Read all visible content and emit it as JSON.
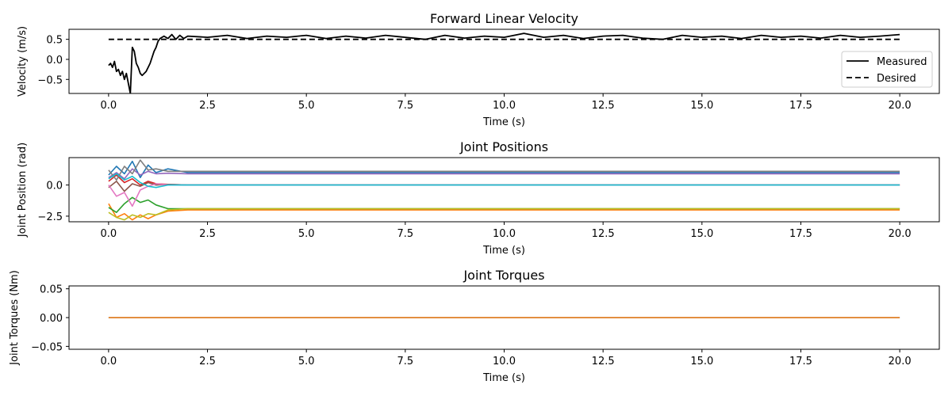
{
  "chart_data": [
    {
      "type": "line",
      "title": "Forward Linear Velocity",
      "xlabel": "Time (s)",
      "ylabel": "Velocity (m/s)",
      "xlim": [
        -1.0,
        21.0
      ],
      "ylim": [
        -0.85,
        0.75
      ],
      "xticks": [
        0,
        2.5,
        5,
        7.5,
        10,
        12.5,
        15,
        17.5,
        20
      ],
      "xtick_labels": [
        "0.0",
        "2.5",
        "5.0",
        "7.5",
        "10.0",
        "12.5",
        "15.0",
        "17.5",
        "20.0"
      ],
      "yticks": [
        0.5,
        0,
        -0.5
      ],
      "ytick_labels": [
        "0.5",
        "0.0",
        "−0.5"
      ],
      "legend_position": "right",
      "grid": false,
      "series": [
        {
          "name": "Measured",
          "color": "#000000",
          "style": "solid",
          "x": [
            0,
            0.05,
            0.1,
            0.15,
            0.2,
            0.25,
            0.3,
            0.35,
            0.4,
            0.45,
            0.5,
            0.55,
            0.6,
            0.65,
            0.7,
            0.75,
            0.8,
            0.85,
            0.9,
            0.95,
            1.0,
            1.05,
            1.1,
            1.15,
            1.2,
            1.25,
            1.3,
            1.35,
            1.4,
            1.5,
            1.6,
            1.7,
            1.8,
            1.9,
            2.0,
            2.5,
            3.0,
            3.5,
            4.0,
            4.5,
            5.0,
            5.5,
            6.0,
            6.5,
            7.0,
            7.5,
            8.0,
            8.5,
            9.0,
            9.5,
            10.0,
            10.5,
            11.0,
            11.5,
            12.0,
            12.5,
            13.0,
            13.5,
            14.0,
            14.5,
            15.0,
            15.5,
            16.0,
            16.5,
            17.0,
            17.5,
            18.0,
            18.5,
            19.0,
            19.5,
            20.0
          ],
          "y": [
            -0.15,
            -0.1,
            -0.2,
            -0.05,
            -0.3,
            -0.25,
            -0.4,
            -0.3,
            -0.5,
            -0.35,
            -0.6,
            -0.85,
            0.3,
            0.2,
            -0.1,
            -0.2,
            -0.35,
            -0.4,
            -0.35,
            -0.3,
            -0.2,
            -0.1,
            0.05,
            0.2,
            0.3,
            0.45,
            0.52,
            0.55,
            0.58,
            0.52,
            0.62,
            0.5,
            0.6,
            0.52,
            0.58,
            0.55,
            0.6,
            0.52,
            0.58,
            0.55,
            0.6,
            0.52,
            0.58,
            0.53,
            0.6,
            0.55,
            0.5,
            0.6,
            0.53,
            0.58,
            0.55,
            0.65,
            0.55,
            0.6,
            0.52,
            0.58,
            0.6,
            0.53,
            0.5,
            0.6,
            0.55,
            0.58,
            0.52,
            0.6,
            0.55,
            0.58,
            0.53,
            0.6,
            0.55,
            0.58,
            0.62
          ]
        },
        {
          "name": "Desired",
          "color": "#000000",
          "style": "dashed",
          "x": [
            0,
            20
          ],
          "y": [
            0.5,
            0.5
          ]
        }
      ]
    },
    {
      "type": "line",
      "title": "Joint Positions",
      "xlabel": "Time (s)",
      "ylabel": "Joint Position (rad)",
      "xlim": [
        -1.0,
        21.0
      ],
      "ylim": [
        -2.95,
        2.2
      ],
      "xticks": [
        0,
        2.5,
        5,
        7.5,
        10,
        12.5,
        15,
        17.5,
        20
      ],
      "xtick_labels": [
        "0.0",
        "2.5",
        "5.0",
        "7.5",
        "10.0",
        "12.5",
        "15.0",
        "17.5",
        "20.0"
      ],
      "yticks": [
        0,
        -2.5
      ],
      "ytick_labels": [
        "0.0",
        "−2.5"
      ],
      "grid": false,
      "series": [
        {
          "color": "#1f77b4",
          "x": [
            0,
            0.2,
            0.4,
            0.6,
            0.8,
            1.0,
            1.2,
            1.5,
            2.0,
            20.0
          ],
          "y": [
            0.8,
            1.5,
            0.9,
            1.9,
            0.6,
            1.6,
            1.0,
            1.3,
            1.0,
            1.0
          ]
        },
        {
          "color": "#ff7f0e",
          "x": [
            0,
            0.2,
            0.4,
            0.6,
            0.8,
            1.0,
            1.2,
            1.5,
            2.0,
            20.0
          ],
          "y": [
            -1.5,
            -2.6,
            -2.3,
            -2.8,
            -2.4,
            -2.7,
            -2.4,
            -2.1,
            -2.0,
            -2.0
          ]
        },
        {
          "color": "#2ca02c",
          "x": [
            0,
            0.2,
            0.4,
            0.6,
            0.8,
            1.0,
            1.2,
            1.5,
            2.0,
            20.0
          ],
          "y": [
            -1.8,
            -2.2,
            -1.5,
            -1.0,
            -1.4,
            -1.2,
            -1.6,
            -1.9,
            -1.9,
            -1.9
          ]
        },
        {
          "color": "#d62728",
          "x": [
            0,
            0.2,
            0.4,
            0.6,
            0.8,
            1.0,
            1.2,
            1.5,
            2.0,
            20.0
          ],
          "y": [
            0.3,
            0.8,
            0.2,
            0.5,
            0.0,
            0.3,
            0.1,
            0.05,
            0.0,
            0.0
          ]
        },
        {
          "color": "#9467bd",
          "x": [
            0,
            0.2,
            0.4,
            0.6,
            0.8,
            1.0,
            1.2,
            1.5,
            2.0,
            20.0
          ],
          "y": [
            0.6,
            1.0,
            0.5,
            1.3,
            0.8,
            1.1,
            0.9,
            0.95,
            0.9,
            0.9
          ]
        },
        {
          "color": "#8c564b",
          "x": [
            0,
            0.2,
            0.4,
            0.6,
            0.8,
            1.0,
            1.2,
            1.5,
            2.0,
            20.0
          ],
          "y": [
            -0.2,
            0.3,
            -0.5,
            0.1,
            -0.1,
            0.2,
            0.0,
            0.05,
            0.0,
            0.0
          ]
        },
        {
          "color": "#e377c2",
          "x": [
            0,
            0.2,
            0.4,
            0.6,
            0.8,
            1.0,
            1.2,
            1.5,
            2.0,
            20.0
          ],
          "y": [
            0.0,
            -0.9,
            -0.6,
            -1.7,
            -0.4,
            -0.1,
            0.1,
            0.0,
            0.0,
            0.0
          ]
        },
        {
          "color": "#7f7f7f",
          "x": [
            0,
            0.2,
            0.4,
            0.6,
            0.8,
            1.0,
            1.2,
            1.5,
            2.0,
            20.0
          ],
          "y": [
            1.2,
            0.4,
            1.5,
            0.9,
            2.0,
            1.2,
            1.3,
            1.1,
            1.1,
            1.1
          ]
        },
        {
          "color": "#bcbd22",
          "x": [
            0,
            0.2,
            0.4,
            0.6,
            0.8,
            1.0,
            1.2,
            1.5,
            2.0,
            20.0
          ],
          "y": [
            -2.2,
            -2.6,
            -2.8,
            -2.4,
            -2.6,
            -2.3,
            -2.4,
            -2.0,
            -1.9,
            -1.9
          ]
        },
        {
          "color": "#17becf",
          "x": [
            0,
            0.2,
            0.4,
            0.6,
            0.8,
            1.0,
            1.2,
            1.5,
            2.0,
            20.0
          ],
          "y": [
            0.5,
            0.9,
            0.4,
            0.7,
            0.2,
            -0.1,
            -0.2,
            0.0,
            0.0,
            0.0
          ]
        }
      ]
    },
    {
      "type": "line",
      "title": "Joint Torques",
      "xlabel": "Time (s)",
      "ylabel": "Joint Torques (Nm)",
      "xlim": [
        -1.0,
        21.0
      ],
      "ylim": [
        -0.055,
        0.055
      ],
      "xticks": [
        0,
        2.5,
        5,
        7.5,
        10,
        12.5,
        15,
        17.5,
        20
      ],
      "xtick_labels": [
        "0.0",
        "2.5",
        "5.0",
        "7.5",
        "10.0",
        "12.5",
        "15.0",
        "17.5",
        "20.0"
      ],
      "yticks": [
        0.05,
        0,
        -0.05
      ],
      "ytick_labels": [
        "0.05",
        "0.00",
        "−0.05"
      ],
      "grid": false,
      "series": [
        {
          "color": "#1f77b4",
          "x": [
            0,
            20
          ],
          "y": [
            0,
            0
          ]
        },
        {
          "color": "#ff7f0e",
          "x": [
            0,
            20
          ],
          "y": [
            0,
            0
          ]
        }
      ]
    }
  ]
}
